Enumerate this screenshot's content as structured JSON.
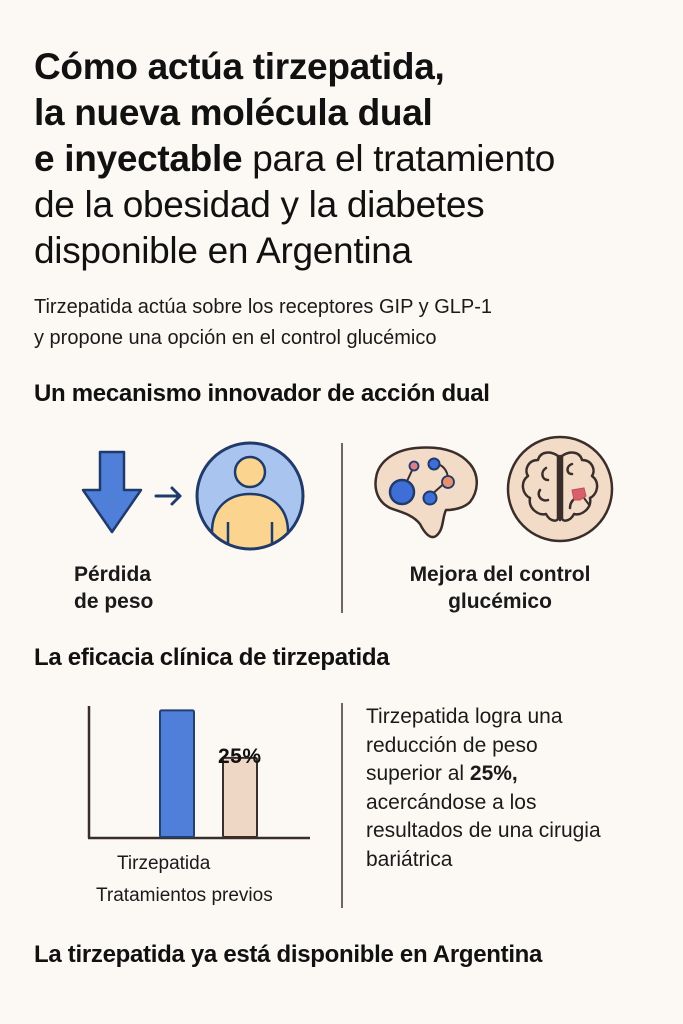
{
  "header": {
    "title_bold": "Cómo actúa tirzepatida, la nueva molécula dual e inyectable",
    "title_regular": "para el tratamiento de la obesidad y la diabetes disponible en Argentina",
    "title_lines": [
      {
        "bold": "Cómo actúa tirzepatida,",
        "regular": ""
      },
      {
        "bold": "la nueva molécula dual",
        "regular": ""
      },
      {
        "bold": "e inyectable",
        "regular": " para el tratamiento"
      },
      {
        "bold": "",
        "regular": "de la obesidad y la diabetes"
      },
      {
        "bold": "",
        "regular": "disponible en Argentina"
      }
    ],
    "subtitle_lines": [
      "Tirzepatida actúa sobre los receptores GIP y GLP-1",
      "y propone una opción en el control glucémico"
    ]
  },
  "mechanism": {
    "heading": "Un mecanismo innovador de acción dual",
    "left": {
      "icons": [
        "down-arrow-icon",
        "right-arrow-icon",
        "person-icon"
      ],
      "caption_lines": [
        "Pérdida",
        "de peso"
      ]
    },
    "right": {
      "icons": [
        "brain-network-icon",
        "brain-circle-icon"
      ],
      "caption_lines": [
        "Mejora del control",
        "glucémico"
      ]
    }
  },
  "efficacy": {
    "heading": "La eficacia clínica de tirzepatida",
    "description": {
      "before_bold": "Tirzepatida logra una reducción de peso superior al ",
      "bold": "25%,",
      "after_bold": " acercándose a los resultados de una cirugia bariátrica",
      "lines": [
        "Tirzepatida  logra una",
        "reducción de peso",
        "superior al ",
        "acercándose a los",
        "resultados de una cirugia",
        "bariátrica"
      ]
    }
  },
  "chart_data": {
    "type": "bar",
    "title": "",
    "xlabel": "",
    "ylabel": "",
    "categories": [
      "Tirzepatida",
      "Tratamientos previos"
    ],
    "values": [
      40,
      25
    ],
    "data_labels": [
      "",
      "25%"
    ],
    "colors": [
      "#4f7fd9",
      "#efd7c6"
    ],
    "ylim": [
      0,
      42
    ],
    "grid": false
  },
  "footer": {
    "heading": "La tirzepatida ya está disponible en Argentina"
  },
  "colors": {
    "background": "#fcf9f4",
    "blue": "#4f7fd9",
    "navy": "#1f3a6b",
    "light_blue": "#a9c4ee",
    "skin": "#fbd590",
    "beige": "#f2dcc8",
    "line": "#6e6464"
  }
}
